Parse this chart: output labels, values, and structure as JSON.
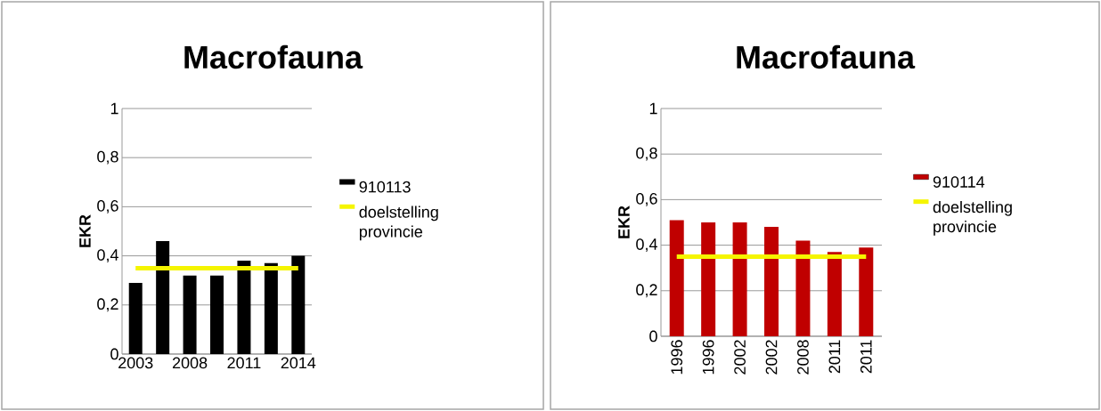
{
  "chart_data": [
    {
      "type": "bar",
      "title": "Macrofauna",
      "ylabel": "EKR",
      "categories": [
        "2003",
        null,
        "2008",
        null,
        "2011",
        null,
        "2014"
      ],
      "series": [
        {
          "name": "910113",
          "color": "#000000",
          "values": [
            0.29,
            0.46,
            0.32,
            0.32,
            0.38,
            0.37,
            0.4
          ]
        },
        {
          "name": "doelstelling provincie",
          "type": "line",
          "color": "#f5f500",
          "values": [
            0.35,
            0.35,
            0.35,
            0.35,
            0.35,
            0.35,
            0.35
          ]
        }
      ],
      "ylim": [
        0,
        1
      ],
      "yticks": [
        0,
        {
          "value": 0.2,
          "label": "0,2"
        },
        {
          "value": 0.4,
          "label": "0,4"
        },
        {
          "value": 0.6,
          "label": "0,6"
        },
        {
          "value": 0.8,
          "label": "0,8"
        },
        1
      ],
      "grid": "y",
      "legend": "right"
    },
    {
      "type": "bar",
      "title": "Macrofauna",
      "ylabel": "EKR",
      "categories": [
        "1996",
        "1996",
        "2002",
        "2002",
        "2008",
        "2011",
        "2011"
      ],
      "series": [
        {
          "name": "910114",
          "color": "#c00000",
          "values": [
            0.51,
            0.5,
            0.5,
            0.48,
            0.42,
            0.37,
            0.39
          ]
        },
        {
          "name": "doelstelling provincie",
          "type": "line",
          "color": "#f5f500",
          "values": [
            0.35,
            0.35,
            0.35,
            0.35,
            0.35,
            0.35,
            0.35
          ]
        }
      ],
      "ylim": [
        0,
        1
      ],
      "yticks": [
        0,
        {
          "value": 0.2,
          "label": "0,2"
        },
        {
          "value": 0.4,
          "label": "0,4"
        },
        {
          "value": 0.6,
          "label": "0,6"
        },
        {
          "value": 0.8,
          "label": "0,8"
        },
        1
      ],
      "grid": "y",
      "legend": "right"
    }
  ]
}
